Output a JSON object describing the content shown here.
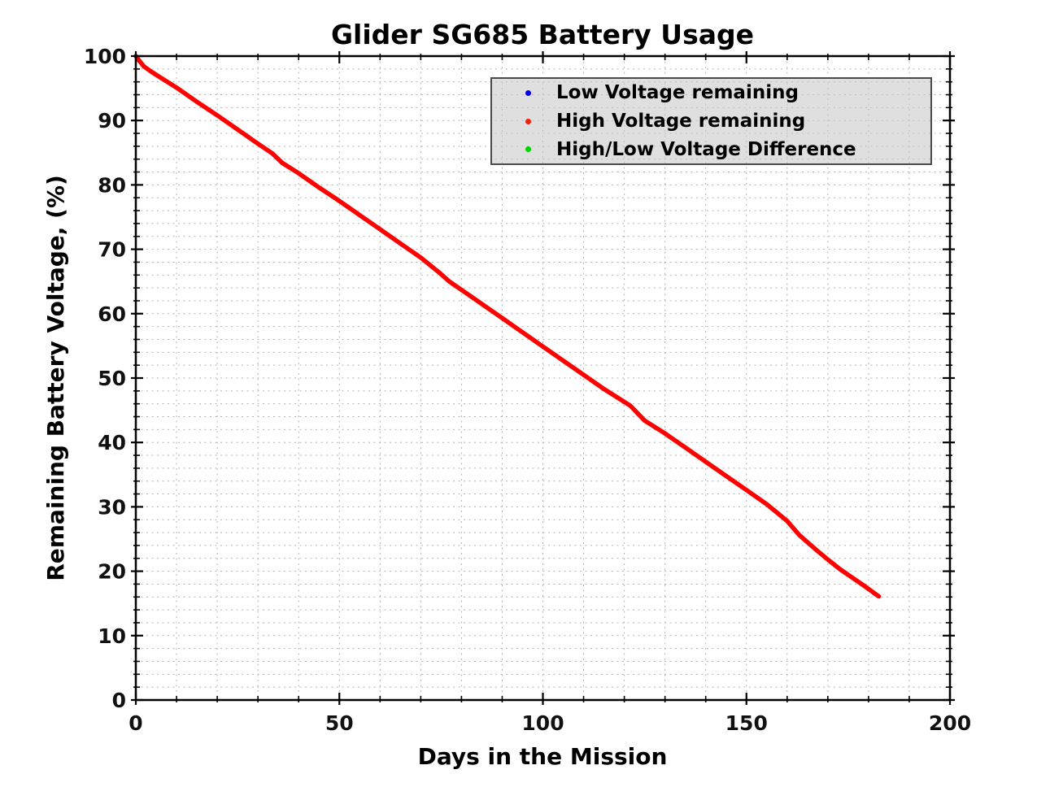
{
  "figure": {
    "title": "Glider SG685 Battery Usage",
    "xlabel": "Days in the Mission",
    "ylabel": "Remaining Battery Voltage, (%)"
  },
  "legend": {
    "items": [
      {
        "label": "Low Voltage remaining",
        "color": "#0000ee",
        "marker": "dot-icon"
      },
      {
        "label": "High Voltage remaining",
        "color": "#ee2211",
        "marker": "dot-icon"
      },
      {
        "label": "High/Low Voltage Difference",
        "color": "#00d400",
        "marker": "dot-icon"
      }
    ]
  },
  "colors": {
    "curve_red": "#ff0000",
    "grid": "#b3b3b3",
    "axis": "#000000",
    "tick_label": "#111111"
  },
  "chart_data": {
    "type": "line",
    "title": "Glider SG685 Battery Usage",
    "xlabel": "Days in the Mission",
    "ylabel": "Remaining Battery Voltage, (%)",
    "xlim": [
      0,
      200
    ],
    "ylim": [
      0,
      100
    ],
    "xticks_major": [
      0,
      50,
      100,
      150,
      200
    ],
    "xtick_minor_step": 10,
    "yticks_major": [
      0,
      10,
      20,
      30,
      40,
      50,
      60,
      70,
      80,
      90,
      100
    ],
    "ytick_minor_step": 2,
    "grid": "dotted minor grid on (vertical every 10 days, horizontal every 2 %)",
    "legend_position": "upper right inside axes",
    "series": [
      {
        "name": "Low Voltage remaining",
        "color": "#0000ee",
        "style": "dot markers",
        "visible_curve": false
      },
      {
        "name": "High Voltage remaining",
        "color": "#ff0000",
        "style": "dense dot markers forming thick line",
        "visible_curve": true,
        "points": [
          [
            0,
            100
          ],
          [
            0.8,
            99.3
          ],
          [
            2,
            98.4
          ],
          [
            3.5,
            97.7
          ],
          [
            5,
            97.1
          ],
          [
            7,
            96.3
          ],
          [
            10,
            95.1
          ],
          [
            15,
            92.9
          ],
          [
            20,
            90.8
          ],
          [
            25,
            88.6
          ],
          [
            30,
            86.4
          ],
          [
            33.5,
            84.9
          ],
          [
            36,
            83.4
          ],
          [
            40,
            81.8
          ],
          [
            45,
            79.6
          ],
          [
            50,
            77.5
          ],
          [
            55,
            75.3
          ],
          [
            60,
            73.1
          ],
          [
            65,
            70.9
          ],
          [
            70,
            68.7
          ],
          [
            74.5,
            66.4
          ],
          [
            77,
            65.0
          ],
          [
            80,
            63.7
          ],
          [
            85,
            61.5
          ],
          [
            90,
            59.3
          ],
          [
            95,
            57.1
          ],
          [
            100,
            54.9
          ],
          [
            105,
            52.7
          ],
          [
            110,
            50.5
          ],
          [
            115,
            48.3
          ],
          [
            120,
            46.3
          ],
          [
            121.5,
            45.7
          ],
          [
            125,
            43.4
          ],
          [
            130,
            41.4
          ],
          [
            135,
            39.2
          ],
          [
            140,
            37.0
          ],
          [
            145,
            34.8
          ],
          [
            150,
            32.6
          ],
          [
            155,
            30.4
          ],
          [
            160,
            27.8
          ],
          [
            163,
            25.6
          ],
          [
            167,
            23.4
          ],
          [
            170,
            21.8
          ],
          [
            173,
            20.3
          ],
          [
            176,
            19.0
          ],
          [
            179,
            17.7
          ],
          [
            182.5,
            16.1
          ]
        ]
      },
      {
        "name": "High/Low Voltage Difference",
        "color": "#00d400",
        "style": "dot markers",
        "visible_curve": false
      }
    ]
  }
}
